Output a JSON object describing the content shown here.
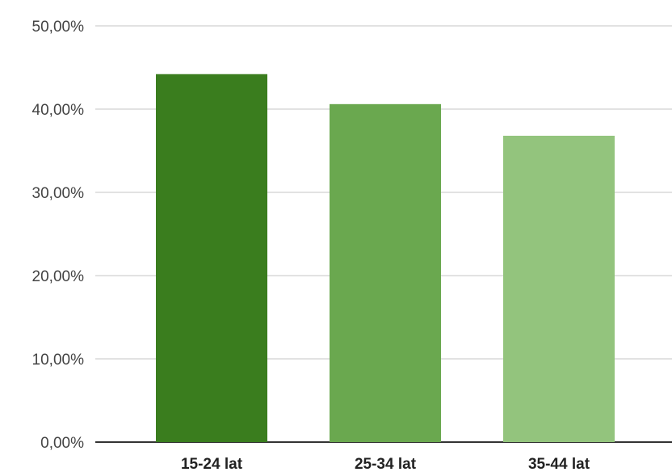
{
  "chart_data": {
    "type": "bar",
    "title": "",
    "xlabel": "",
    "ylabel": "",
    "categories": [
      "15-24 lat",
      "25-34 lat",
      "35-44 lat"
    ],
    "values": [
      44.2,
      40.6,
      36.8
    ],
    "colors": [
      "#3a7d1e",
      "#6aa84f",
      "#93c47d"
    ],
    "ylim": [
      0,
      50
    ],
    "yticks": [
      0,
      10,
      20,
      30,
      40,
      50
    ],
    "ytick_labels": [
      "0,00%",
      "10,00%",
      "20,00%",
      "30,00%",
      "40,00%",
      "50,00%"
    ],
    "grid": true,
    "legend": "none"
  }
}
